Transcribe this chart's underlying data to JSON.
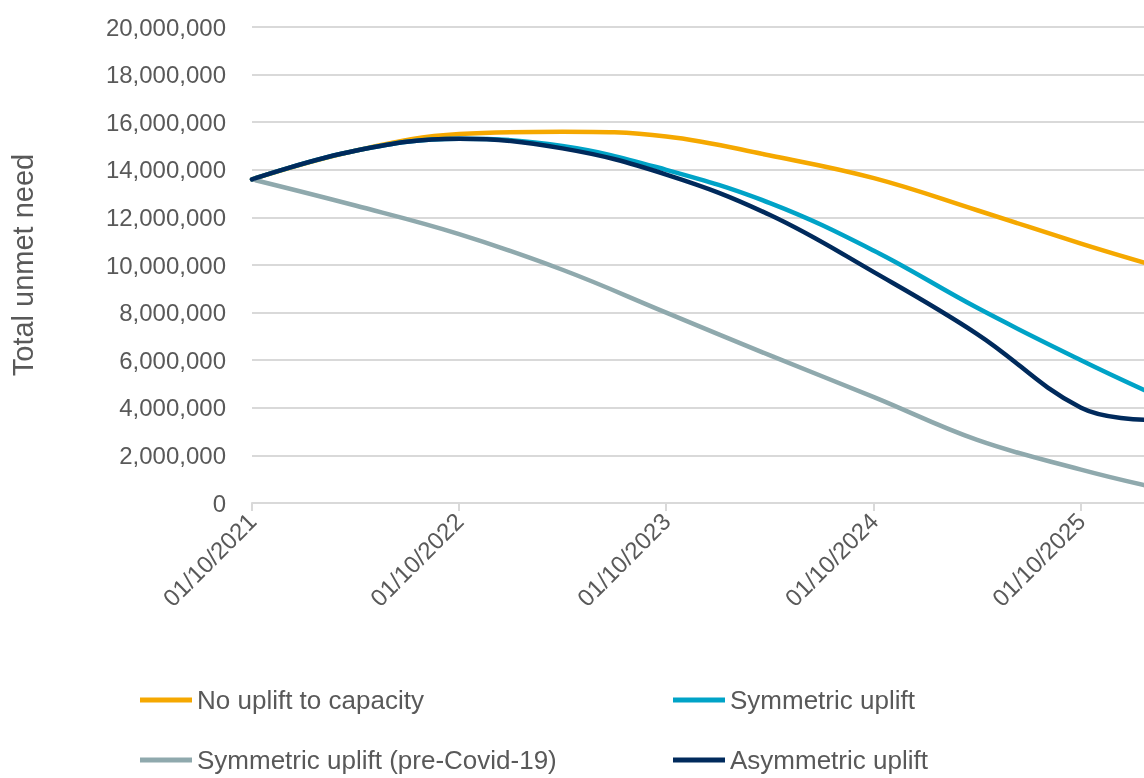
{
  "chart_data": {
    "type": "line",
    "ylabel": "Total unmet need",
    "x": [
      "2021-10-01",
      "2022-04-01",
      "2022-10-01",
      "2023-04-01",
      "2023-10-01",
      "2024-04-01",
      "2024-10-01",
      "2025-04-01",
      "2025-10-01",
      "2026-01-20"
    ],
    "series": [
      {
        "name": "No uplift to capacity",
        "color": "#f5a800",
        "values": [
          13600000,
          14800000,
          15500000,
          15600000,
          15400000,
          14600000,
          13650000,
          12300000,
          10900000,
          10100000
        ]
      },
      {
        "name": "Symmetric uplift",
        "color": "#00a3c7",
        "values": [
          13600000,
          14800000,
          15300000,
          15000000,
          14000000,
          12600000,
          10600000,
          8200000,
          6000000,
          4750000
        ]
      },
      {
        "name": "Symmetric uplift (pre-Covid-19)",
        "color": "#8fa9ad",
        "values": [
          13600000,
          12500000,
          11300000,
          9800000,
          8000000,
          6200000,
          4450000,
          2650000,
          1400000,
          750000
        ]
      },
      {
        "name": "Asymmetric uplift",
        "color": "#002a5c",
        "values": [
          13600000,
          14800000,
          15300000,
          14900000,
          13800000,
          12100000,
          9700000,
          7100000,
          4000000,
          3500000
        ]
      }
    ],
    "xlim": [
      "2021-10-01",
      "2026-01-20"
    ],
    "xticks": [
      {
        "value": "2021-10-01",
        "label": "01/10/2021"
      },
      {
        "value": "2022-10-01",
        "label": "01/10/2022"
      },
      {
        "value": "2023-10-01",
        "label": "01/10/2023"
      },
      {
        "value": "2024-10-01",
        "label": "01/10/2024"
      },
      {
        "value": "2025-10-01",
        "label": "01/10/2025"
      }
    ],
    "ylim": [
      0,
      20000000
    ],
    "yticks": [
      0,
      {
        "value": 2000000,
        "label": "2,000,000"
      },
      {
        "value": 4000000,
        "label": "4,000,000"
      },
      {
        "value": 6000000,
        "label": "6,000,000"
      },
      {
        "value": 8000000,
        "label": "8,000,000"
      },
      {
        "value": 10000000,
        "label": "10,000,000"
      },
      {
        "value": 12000000,
        "label": "12,000,000"
      },
      {
        "value": 14000000,
        "label": "14,000,000"
      },
      {
        "value": 16000000,
        "label": "16,000,000"
      },
      {
        "value": 18000000,
        "label": "18,000,000"
      },
      {
        "value": 20000000,
        "label": "20,000,000"
      }
    ],
    "grid": "y",
    "legend": "bottom"
  }
}
